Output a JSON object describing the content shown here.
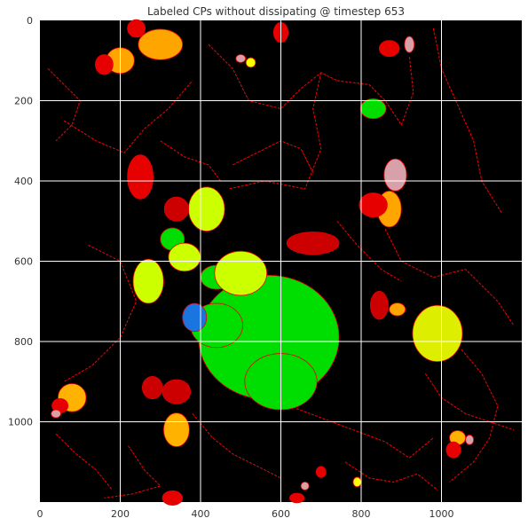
{
  "chart_data": {
    "type": "heatmap",
    "title": "Labeled CPs without dissipating @ timestep 653",
    "xlabel": "",
    "ylabel": "",
    "xlim": [
      0,
      1200
    ],
    "ylim": [
      1200,
      0
    ],
    "x_ticks": [
      0,
      200,
      400,
      600,
      800,
      1000
    ],
    "y_ticks": [
      0,
      200,
      400,
      600,
      800,
      1000
    ],
    "grid": true,
    "background_color": "#000000",
    "grid_color": "#ffffff",
    "colors": {
      "red": "#e60000",
      "dark_red": "#cc0000",
      "orange": "#ffa500",
      "gold": "#ffb300",
      "yellow": "#ffff00",
      "lime": "#ccff00",
      "yellow_green": "#ddee00",
      "green": "#00dd00",
      "blue": "#1a75e0",
      "pink": "#d8a0a8"
    },
    "regions": [
      {
        "label": "green-large",
        "color": "green",
        "cx": 570,
        "cy": 790,
        "rx": 175,
        "ry": 155
      },
      {
        "label": "green-left",
        "color": "green",
        "cx": 440,
        "cy": 760,
        "rx": 65,
        "ry": 55
      },
      {
        "label": "green-lower-lobe",
        "color": "green",
        "cx": 600,
        "cy": 900,
        "rx": 90,
        "ry": 70
      },
      {
        "label": "green-top-right",
        "color": "green",
        "cx": 830,
        "cy": 220,
        "rx": 32,
        "ry": 25
      },
      {
        "label": "green-mid-left",
        "color": "green",
        "cx": 330,
        "cy": 545,
        "rx": 30,
        "ry": 28
      },
      {
        "label": "green-mid",
        "color": "green",
        "cx": 440,
        "cy": 640,
        "rx": 40,
        "ry": 30
      },
      {
        "label": "blue",
        "color": "blue",
        "cx": 385,
        "cy": 740,
        "rx": 30,
        "ry": 35
      },
      {
        "label": "lime-center",
        "color": "lime",
        "cx": 500,
        "cy": 630,
        "rx": 65,
        "ry": 55
      },
      {
        "label": "lime-upper",
        "color": "lime",
        "cx": 415,
        "cy": 470,
        "rx": 45,
        "ry": 55
      },
      {
        "label": "lime-left",
        "color": "lime",
        "cx": 270,
        "cy": 650,
        "rx": 38,
        "ry": 55
      },
      {
        "label": "lime-mid",
        "color": "lime",
        "cx": 360,
        "cy": 590,
        "rx": 40,
        "ry": 35
      },
      {
        "label": "yellow-green-right",
        "color": "yellow_green",
        "cx": 990,
        "cy": 780,
        "rx": 62,
        "ry": 70
      },
      {
        "label": "orange-top",
        "color": "orange",
        "cx": 300,
        "cy": 60,
        "rx": 55,
        "ry": 38
      },
      {
        "label": "orange-top-2",
        "color": "orange",
        "cx": 200,
        "cy": 100,
        "rx": 35,
        "ry": 32
      },
      {
        "label": "orange-right",
        "color": "orange",
        "cx": 870,
        "cy": 470,
        "rx": 30,
        "ry": 45
      },
      {
        "label": "orange-right-lower",
        "color": "orange",
        "cx": 890,
        "cy": 720,
        "rx": 20,
        "ry": 16
      },
      {
        "label": "gold-bottom-left",
        "color": "gold",
        "cx": 80,
        "cy": 940,
        "rx": 35,
        "ry": 35
      },
      {
        "label": "gold-bottom",
        "color": "gold",
        "cx": 340,
        "cy": 1020,
        "rx": 32,
        "ry": 42
      },
      {
        "label": "gold-bottom-right",
        "color": "gold",
        "cx": 1040,
        "cy": 1040,
        "rx": 20,
        "ry": 18
      },
      {
        "label": "red-top-left",
        "color": "red",
        "cx": 240,
        "cy": 20,
        "rx": 22,
        "ry": 22
      },
      {
        "label": "red-top-left-2",
        "color": "red",
        "cx": 160,
        "cy": 110,
        "rx": 22,
        "ry": 25
      },
      {
        "label": "red-top",
        "color": "red",
        "cx": 600,
        "cy": 30,
        "rx": 18,
        "ry": 25
      },
      {
        "label": "red-top-right",
        "color": "red",
        "cx": 870,
        "cy": 70,
        "rx": 25,
        "ry": 20
      },
      {
        "label": "red-left",
        "color": "red",
        "cx": 250,
        "cy": 390,
        "rx": 32,
        "ry": 55
      },
      {
        "label": "red-mid-left",
        "color": "dark_red",
        "cx": 340,
        "cy": 470,
        "rx": 30,
        "ry": 30
      },
      {
        "label": "red-mid",
        "color": "dark_red",
        "cx": 680,
        "cy": 555,
        "rx": 65,
        "ry": 28
      },
      {
        "label": "red-right",
        "color": "red",
        "cx": 830,
        "cy": 460,
        "rx": 35,
        "ry": 30
      },
      {
        "label": "red-right-mid",
        "color": "dark_red",
        "cx": 845,
        "cy": 710,
        "rx": 22,
        "ry": 35
      },
      {
        "label": "red-bottom-left",
        "color": "dark_red",
        "cx": 340,
        "cy": 925,
        "rx": 35,
        "ry": 30
      },
      {
        "label": "red-bottom-left-2",
        "color": "dark_red",
        "cx": 280,
        "cy": 915,
        "rx": 25,
        "ry": 28
      },
      {
        "label": "red-bottom",
        "color": "red",
        "cx": 330,
        "cy": 1190,
        "rx": 25,
        "ry": 18
      },
      {
        "label": "red-bottom-2",
        "color": "red",
        "cx": 640,
        "cy": 1190,
        "rx": 18,
        "ry": 12
      },
      {
        "label": "red-bottom-3",
        "color": "red",
        "cx": 700,
        "cy": 1125,
        "rx": 12,
        "ry": 14
      },
      {
        "label": "red-bottom-right",
        "color": "red",
        "cx": 1030,
        "cy": 1070,
        "rx": 18,
        "ry": 20
      },
      {
        "label": "red-corner-left",
        "color": "red",
        "cx": 50,
        "cy": 960,
        "rx": 20,
        "ry": 18
      },
      {
        "label": "pink-right",
        "color": "pink",
        "cx": 885,
        "cy": 385,
        "rx": 28,
        "ry": 40
      },
      {
        "label": "pink-top-right",
        "color": "pink",
        "cx": 920,
        "cy": 60,
        "rx": 12,
        "ry": 20
      },
      {
        "label": "pink-top",
        "color": "pink",
        "cx": 500,
        "cy": 95,
        "rx": 12,
        "ry": 10
      },
      {
        "label": "pink-bottom-left",
        "color": "pink",
        "cx": 40,
        "cy": 980,
        "rx": 12,
        "ry": 10
      },
      {
        "label": "pink-bottom",
        "color": "pink",
        "cx": 660,
        "cy": 1160,
        "rx": 10,
        "ry": 10
      },
      {
        "label": "pink-bottom-right",
        "color": "pink",
        "cx": 1070,
        "cy": 1045,
        "rx": 10,
        "ry": 12
      },
      {
        "label": "yellow-top",
        "color": "yellow",
        "cx": 525,
        "cy": 105,
        "rx": 12,
        "ry": 12
      },
      {
        "label": "yellow-bottom",
        "color": "yellow",
        "cx": 790,
        "cy": 1150,
        "rx": 10,
        "ry": 12
      }
    ],
    "boundary_traces": [
      [
        [
          420,
          60
        ],
        [
          480,
          120
        ],
        [
          520,
          200
        ],
        [
          600,
          220
        ],
        [
          650,
          170
        ],
        [
          700,
          130
        ],
        [
          740,
          150
        ]
      ],
      [
        [
          700,
          130
        ],
        [
          680,
          220
        ],
        [
          700,
          320
        ],
        [
          660,
          420
        ],
        [
          560,
          400
        ],
        [
          470,
          420
        ]
      ],
      [
        [
          740,
          150
        ],
        [
          820,
          160
        ],
        [
          860,
          200
        ],
        [
          900,
          260
        ],
        [
          930,
          180
        ],
        [
          920,
          90
        ]
      ],
      [
        [
          980,
          20
        ],
        [
          1000,
          120
        ],
        [
          1040,
          210
        ],
        [
          1080,
          300
        ],
        [
          1100,
          400
        ],
        [
          1150,
          480
        ]
      ],
      [
        [
          860,
          520
        ],
        [
          900,
          600
        ],
        [
          980,
          640
        ],
        [
          1060,
          620
        ],
        [
          1140,
          700
        ],
        [
          1180,
          760
        ]
      ],
      [
        [
          60,
          250
        ],
        [
          140,
          300
        ],
        [
          210,
          330
        ],
        [
          260,
          270
        ],
        [
          320,
          220
        ],
        [
          380,
          150
        ]
      ],
      [
        [
          120,
          560
        ],
        [
          200,
          600
        ],
        [
          240,
          700
        ],
        [
          200,
          790
        ],
        [
          130,
          860
        ],
        [
          60,
          900
        ]
      ],
      [
        [
          740,
          500
        ],
        [
          790,
          560
        ],
        [
          850,
          620
        ],
        [
          900,
          650
        ]
      ],
      [
        [
          620,
          960
        ],
        [
          700,
          990
        ],
        [
          780,
          1020
        ],
        [
          860,
          1050
        ],
        [
          920,
          1090
        ],
        [
          980,
          1040
        ]
      ],
      [
        [
          380,
          980
        ],
        [
          430,
          1040
        ],
        [
          480,
          1080
        ],
        [
          540,
          1110
        ],
        [
          600,
          1140
        ]
      ],
      [
        [
          1050,
          820
        ],
        [
          1100,
          880
        ],
        [
          1140,
          960
        ],
        [
          1120,
          1040
        ],
        [
          1080,
          1100
        ],
        [
          1020,
          1150
        ]
      ],
      [
        [
          220,
          1060
        ],
        [
          260,
          1120
        ],
        [
          300,
          1160
        ],
        [
          230,
          1180
        ],
        [
          160,
          1190
        ]
      ],
      [
        [
          40,
          1030
        ],
        [
          90,
          1080
        ],
        [
          140,
          1120
        ],
        [
          180,
          1170
        ]
      ],
      [
        [
          480,
          360
        ],
        [
          540,
          330
        ],
        [
          600,
          300
        ],
        [
          650,
          320
        ],
        [
          680,
          380
        ]
      ],
      [
        [
          960,
          880
        ],
        [
          1000,
          940
        ],
        [
          1060,
          980
        ],
        [
          1120,
          1000
        ],
        [
          1180,
          1020
        ]
      ],
      [
        [
          760,
          1100
        ],
        [
          820,
          1140
        ],
        [
          880,
          1150
        ],
        [
          940,
          1130
        ],
        [
          990,
          1170
        ]
      ],
      [
        [
          300,
          300
        ],
        [
          360,
          340
        ],
        [
          420,
          360
        ],
        [
          450,
          400
        ]
      ],
      [
        [
          20,
          120
        ],
        [
          60,
          160
        ],
        [
          100,
          200
        ],
        [
          80,
          260
        ],
        [
          40,
          300
        ]
      ]
    ]
  }
}
